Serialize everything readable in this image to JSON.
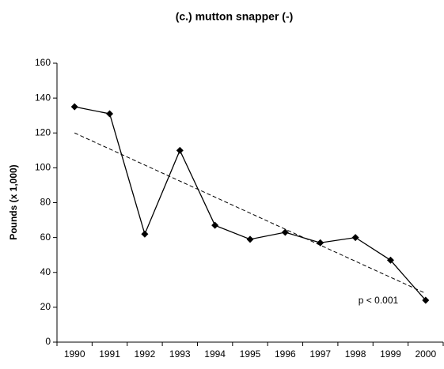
{
  "chart_data": {
    "type": "line",
    "title": "(c.) mutton snapper (-)",
    "y_label": "Pounds (x 1,000)",
    "x": [
      1990,
      1991,
      1992,
      1993,
      1994,
      1995,
      1996,
      1997,
      1998,
      1999,
      2000
    ],
    "xlim": [
      1989.5,
      2000.5
    ],
    "series": [
      {
        "color": "#000000",
        "values": [
          135,
          131,
          62,
          110,
          67,
          59,
          63,
          57,
          60,
          47,
          24
        ]
      }
    ],
    "trend_line": {
      "x": [
        1990,
        2000
      ],
      "values": [
        120,
        28
      ],
      "color": "#000000",
      "style": "dashed"
    },
    "ylim": [
      0,
      160
    ],
    "yticks": [
      0,
      20,
      40,
      60,
      80,
      100,
      120,
      140,
      160
    ],
    "grid": false,
    "annotation": "p < 0.001"
  }
}
